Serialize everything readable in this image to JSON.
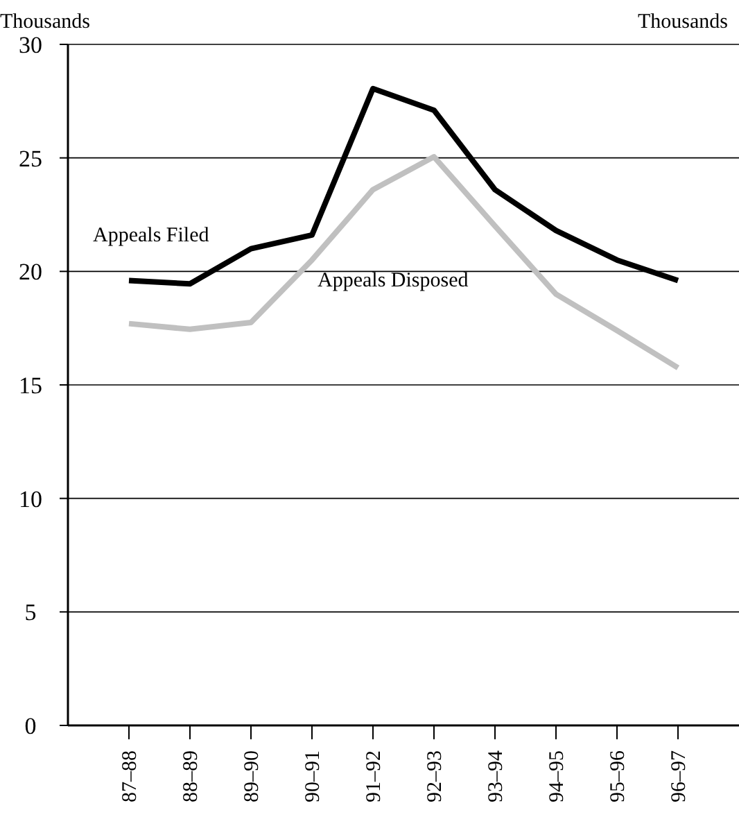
{
  "chart_data": {
    "type": "line",
    "ylabel": "Thousands",
    "annotations": [
      "Thousands"
    ],
    "categories": [
      "87–88",
      "88–89",
      "89–90",
      "90–91",
      "91–92",
      "92–93",
      "93–94",
      "94–95",
      "95–96",
      "96–97"
    ],
    "series": [
      {
        "name": "Appeals Filed",
        "color": "#000000",
        "values": [
          19.6,
          19.45,
          21.0,
          21.6,
          28.05,
          27.1,
          23.6,
          21.8,
          20.5,
          19.6
        ]
      },
      {
        "name": "Appeals Disposed",
        "color": "#c0c0c0",
        "values": [
          17.7,
          17.45,
          17.75,
          20.5,
          23.6,
          25.05,
          22.0,
          19.0,
          17.4,
          15.75
        ]
      }
    ],
    "ylim": [
      0,
      30
    ],
    "yticks": [
      0,
      5,
      10,
      15,
      20,
      25,
      30
    ],
    "grid": "y",
    "marker": "none",
    "line_style": "solid"
  }
}
